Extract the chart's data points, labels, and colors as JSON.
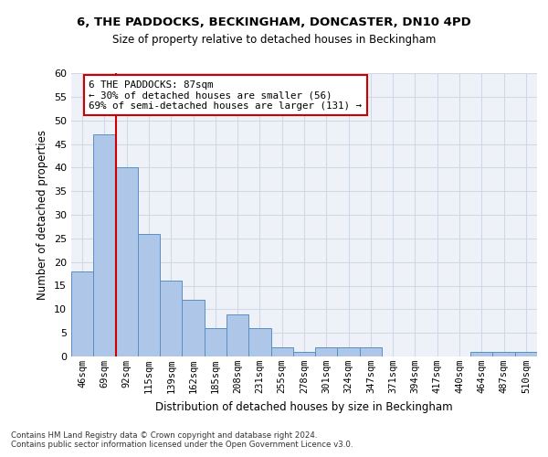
{
  "title1": "6, THE PADDOCKS, BECKINGHAM, DONCASTER, DN10 4PD",
  "title2": "Size of property relative to detached houses in Beckingham",
  "xlabel": "Distribution of detached houses by size in Beckingham",
  "ylabel": "Number of detached properties",
  "bar_labels": [
    "46sqm",
    "69sqm",
    "92sqm",
    "115sqm",
    "139sqm",
    "162sqm",
    "185sqm",
    "208sqm",
    "231sqm",
    "255sqm",
    "278sqm",
    "301sqm",
    "324sqm",
    "347sqm",
    "371sqm",
    "394sqm",
    "417sqm",
    "440sqm",
    "464sqm",
    "487sqm",
    "510sqm"
  ],
  "bar_values": [
    18,
    47,
    40,
    26,
    16,
    12,
    6,
    9,
    6,
    2,
    1,
    2,
    2,
    2,
    0,
    0,
    0,
    0,
    1,
    1,
    1
  ],
  "bar_color": "#aec6e8",
  "bar_edge_color": "#5a8fc2",
  "grid_color": "#d0d8e8",
  "background_color": "#eef2f8",
  "redline_x": 1.5,
  "annotation_text": "6 THE PADDOCKS: 87sqm\n← 30% of detached houses are smaller (56)\n69% of semi-detached houses are larger (131) →",
  "annotation_box_color": "#ffffff",
  "annotation_box_edge": "#cc0000",
  "ylim": [
    0,
    60
  ],
  "yticks": [
    0,
    5,
    10,
    15,
    20,
    25,
    30,
    35,
    40,
    45,
    50,
    55,
    60
  ],
  "footer1": "Contains HM Land Registry data © Crown copyright and database right 2024.",
  "footer2": "Contains public sector information licensed under the Open Government Licence v3.0."
}
